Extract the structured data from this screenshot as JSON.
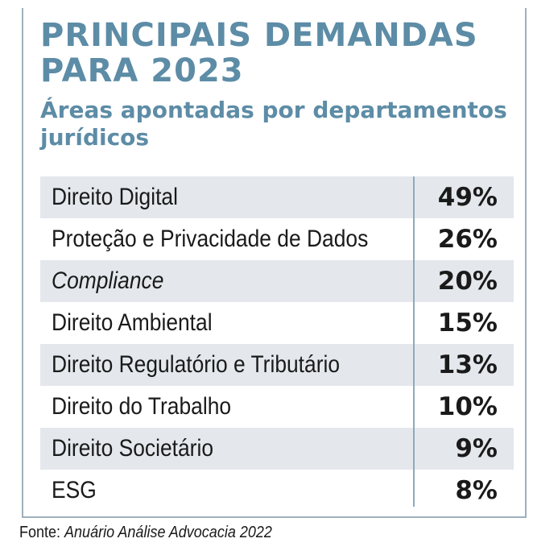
{
  "title": "PRINCIPAIS DEMANDAS PARA 2023",
  "subtitle": "Áreas apontadas por departamentos jurídicos",
  "source_label": "Fonte:",
  "source_text": "Anuário Análise Advocacia 2022",
  "colors": {
    "accent": "#5d8ca6",
    "row_shade": "#e4e8ec",
    "divider": "#8fa9bc"
  },
  "chart_data": {
    "type": "table",
    "title": "PRINCIPAIS DEMANDAS PARA 2023",
    "subtitle": "Áreas apontadas por departamentos jurídicos",
    "categories": [
      "Direito Digital",
      "Proteção e Privacidade de Dados",
      "Compliance",
      "Direito Ambiental",
      "Direito Regulatório e Tributário",
      "Direito do Trabalho",
      "Direito Societário",
      "ESG"
    ],
    "values": [
      49,
      26,
      20,
      15,
      13,
      10,
      9,
      8
    ],
    "value_labels": [
      "49%",
      "26%",
      "20%",
      "15%",
      "13%",
      "10%",
      "9%",
      "8%"
    ],
    "italic_categories": [
      "Compliance"
    ]
  }
}
